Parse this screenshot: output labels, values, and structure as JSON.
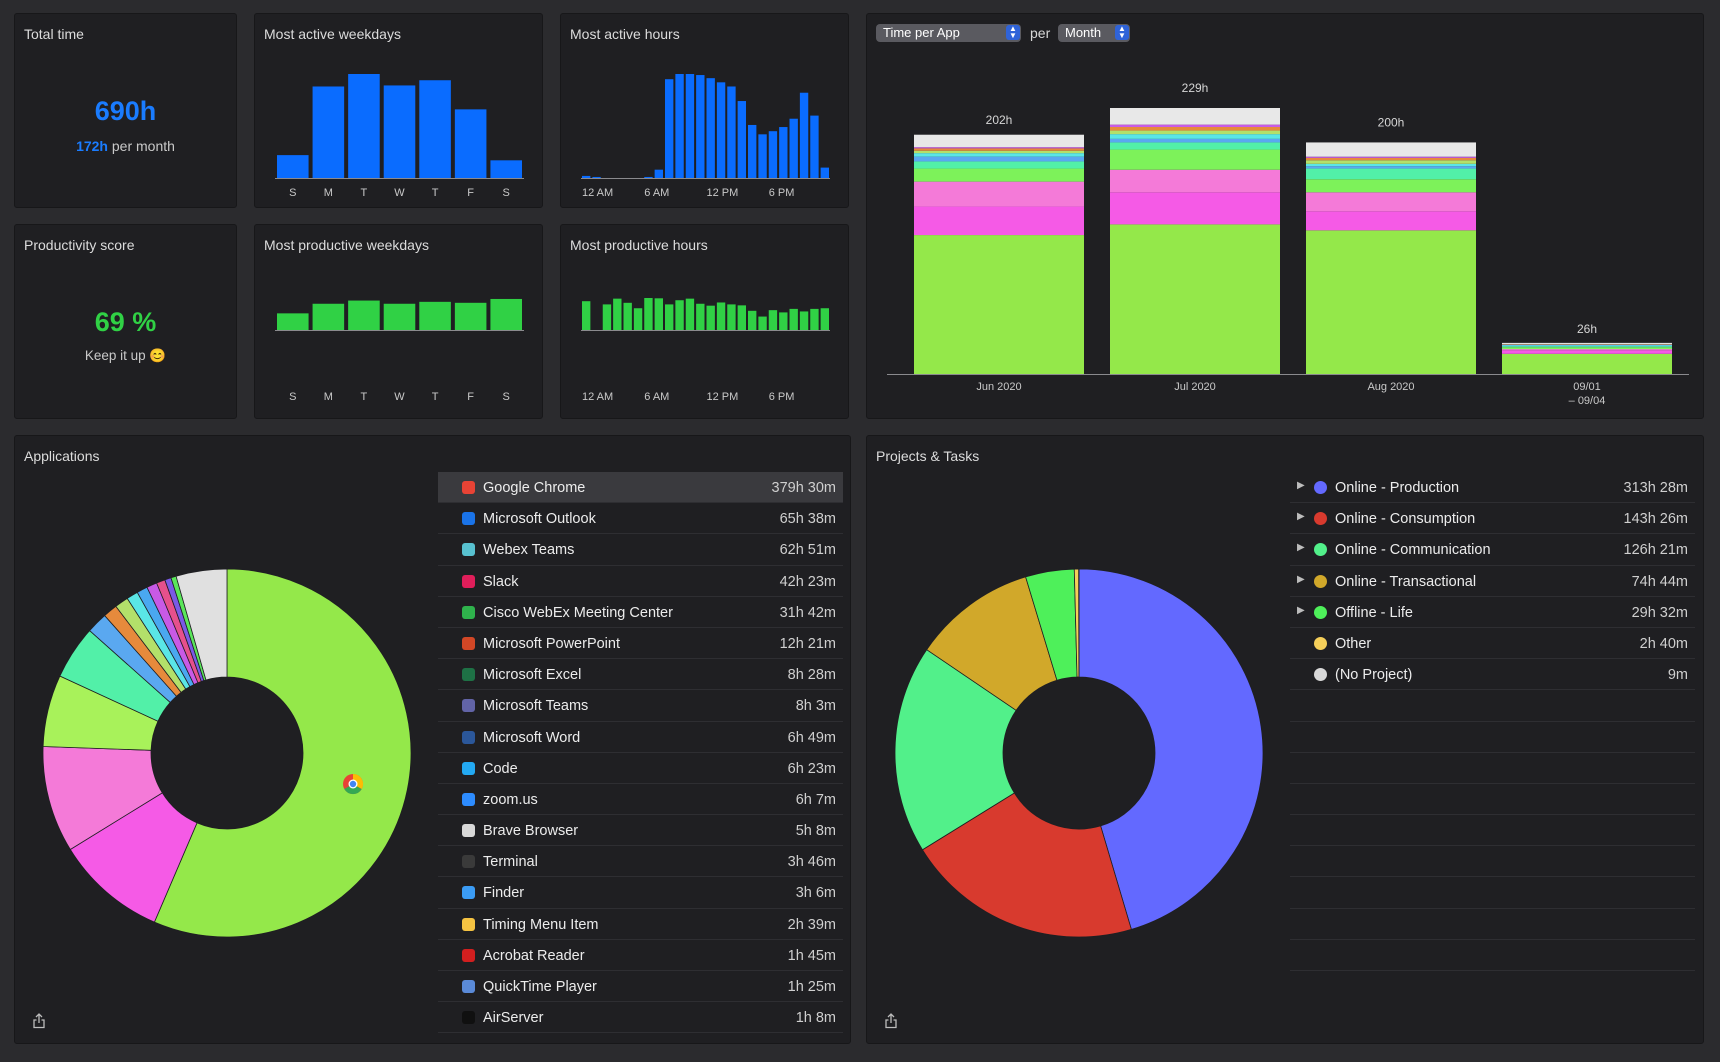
{
  "total_time": {
    "title": "Total time",
    "value": "690h",
    "per_month_value": "172h",
    "per_month_label": "per month"
  },
  "productivity": {
    "title": "Productivity score",
    "value": "69 %",
    "subtitle": "Keep it up 😊"
  },
  "weekday_labels": [
    "S",
    "M",
    "T",
    "W",
    "T",
    "F",
    "S"
  ],
  "hour_labels": [
    "12 AM",
    "6 AM",
    "12 PM",
    "6 PM"
  ],
  "most_active_weekdays": {
    "title": "Most active weekdays",
    "values": [
      0.22,
      0.88,
      1.0,
      0.89,
      0.94,
      0.66,
      0.17
    ],
    "color": "#0a6cff"
  },
  "most_active_hours": {
    "title": "Most active hours",
    "values": [
      0.02,
      0.01,
      0,
      0,
      0,
      0,
      0.01,
      0.08,
      0.95,
      1.0,
      1.0,
      0.99,
      0.96,
      0.92,
      0.88,
      0.74,
      0.51,
      0.42,
      0.45,
      0.49,
      0.57,
      0.82,
      0.6,
      0.1
    ],
    "color": "#0a6cff"
  },
  "most_productive_weekdays": {
    "title": "Most productive weekdays",
    "values": [
      0.52,
      0.82,
      0.92,
      0.82,
      0.88,
      0.85,
      0.97
    ],
    "color": "#30d145"
  },
  "most_productive_hours": {
    "title": "Most productive hours",
    "values": [
      0.9,
      0,
      0.8,
      0.98,
      0.85,
      0.68,
      1.0,
      0.99,
      0.8,
      0.93,
      0.98,
      0.82,
      0.76,
      0.86,
      0.8,
      0.77,
      0.6,
      0.42,
      0.62,
      0.55,
      0.66,
      0.58,
      0.66,
      0.68
    ],
    "color": "#30d145"
  },
  "time_chart": {
    "metric_select": "Time per App",
    "per_label": "per",
    "period_select": "Month"
  },
  "chart_data": {
    "type": "bar",
    "stacked": true,
    "categories": [
      "Jun 2020",
      "Jul 2020",
      "Aug 2020",
      "09/01\n– 09/04"
    ],
    "totals_labels": [
      "202h",
      "229h",
      "200h",
      "26h"
    ],
    "totals": [
      202,
      229,
      200,
      26
    ],
    "ylim": [
      0,
      240
    ],
    "segments": [
      {
        "color": "#94e84a",
        "values": [
          117,
          126,
          121,
          17
        ]
      },
      {
        "color": "#f55ae6",
        "values": [
          24,
          27,
          16,
          3
        ]
      },
      {
        "color": "#f47ad8",
        "values": [
          21,
          19,
          16,
          1
        ]
      },
      {
        "color": "#7df25a",
        "values": [
          11,
          17,
          11,
          1.5
        ]
      },
      {
        "color": "#52f0a8",
        "values": [
          6,
          6,
          9,
          1
        ]
      },
      {
        "color": "#5aa8f0",
        "values": [
          4,
          3,
          2,
          0.5
        ]
      },
      {
        "color": "#5ae6e6",
        "values": [
          3,
          4,
          2,
          0.5
        ]
      },
      {
        "color": "#b3e06a",
        "values": [
          2,
          3,
          3,
          0.3
        ]
      },
      {
        "color": "#e68a3c",
        "values": [
          2,
          3,
          2,
          0.3
        ]
      },
      {
        "color": "#c85ae6",
        "values": [
          1,
          2,
          1,
          0.2
        ]
      },
      {
        "color": "#e8e8e8",
        "values": [
          10.5,
          14,
          12,
          0.9
        ]
      }
    ]
  },
  "applications": {
    "title": "Applications",
    "items": [
      {
        "name": "Google Chrome",
        "duration": "379h 30m",
        "icon": "chrome-icon",
        "color": "#e84335",
        "minutes": 22770
      },
      {
        "name": "Microsoft Outlook",
        "duration": "65h 38m",
        "icon": "outlook-icon",
        "color": "#1a73e8",
        "minutes": 3938
      },
      {
        "name": "Webex Teams",
        "duration": "62h 51m",
        "icon": "webex-icon",
        "color": "#58c1d0",
        "minutes": 3771
      },
      {
        "name": "Slack",
        "duration": "42h 23m",
        "icon": "slack-icon",
        "color": "#e01e5a",
        "minutes": 2543
      },
      {
        "name": "Cisco WebEx Meeting Center",
        "duration": "31h 42m",
        "icon": "webex-meeting-icon",
        "color": "#2fb24c",
        "minutes": 1902
      },
      {
        "name": "Microsoft PowerPoint",
        "duration": "12h 21m",
        "icon": "powerpoint-icon",
        "color": "#d24726",
        "minutes": 741
      },
      {
        "name": "Microsoft Excel",
        "duration": "8h 28m",
        "icon": "excel-icon",
        "color": "#1e7145",
        "minutes": 508
      },
      {
        "name": "Microsoft Teams",
        "duration": "8h 3m",
        "icon": "teams-icon",
        "color": "#6264a7",
        "minutes": 483
      },
      {
        "name": "Microsoft Word",
        "duration": "6h 49m",
        "icon": "word-icon",
        "color": "#2b579a",
        "minutes": 409
      },
      {
        "name": "Code",
        "duration": "6h 23m",
        "icon": "vscode-icon",
        "color": "#23a9f2",
        "minutes": 383
      },
      {
        "name": "zoom.us",
        "duration": "6h 7m",
        "icon": "zoom-icon",
        "color": "#2d8cff",
        "minutes": 367
      },
      {
        "name": "Brave Browser",
        "duration": "5h 8m",
        "icon": "brave-icon",
        "color": "#d8d8d8",
        "minutes": 308
      },
      {
        "name": "Terminal",
        "duration": "3h 46m",
        "icon": "terminal-icon",
        "color": "#3a3a3a",
        "minutes": 226
      },
      {
        "name": "Finder",
        "duration": "3h 6m",
        "icon": "finder-icon",
        "color": "#3b9cf5",
        "minutes": 186
      },
      {
        "name": "Timing Menu Item",
        "duration": "2h 39m",
        "icon": "timing-icon",
        "color": "#f5c342",
        "minutes": 159
      },
      {
        "name": "Acrobat Reader",
        "duration": "1h 45m",
        "icon": "acrobat-icon",
        "color": "#d21f1f",
        "minutes": 105
      },
      {
        "name": "QuickTime Player",
        "duration": "1h 25m",
        "icon": "quicktime-icon",
        "color": "#5a8ad8",
        "minutes": 85
      },
      {
        "name": "AirServer",
        "duration": "1h 8m",
        "icon": "airserver-icon",
        "color": "#101010",
        "minutes": 68
      }
    ],
    "pie": [
      {
        "value": 22770,
        "color": "#94e84a"
      },
      {
        "value": 3938,
        "color": "#f55ae6"
      },
      {
        "value": 3771,
        "color": "#f47ad8"
      },
      {
        "value": 2543,
        "color": "#a8f25a"
      },
      {
        "value": 1902,
        "color": "#52f0a8"
      },
      {
        "value": 741,
        "color": "#5aa8f0"
      },
      {
        "value": 508,
        "color": "#e68a3c"
      },
      {
        "value": 483,
        "color": "#b3e06a"
      },
      {
        "value": 409,
        "color": "#5ae6e6"
      },
      {
        "value": 383,
        "color": "#4aa8f0"
      },
      {
        "value": 367,
        "color": "#c85ae6"
      },
      {
        "value": 308,
        "color": "#e6508c"
      },
      {
        "value": 226,
        "color": "#7a5ae6"
      },
      {
        "value": 186,
        "color": "#5ae65a"
      },
      {
        "value": 1800,
        "color": "#e0e0e0"
      }
    ]
  },
  "projects": {
    "title": "Projects & Tasks",
    "items": [
      {
        "name": "Online - Production",
        "duration": "313h 28m",
        "color": "#6369ff",
        "expandable": true
      },
      {
        "name": "Online - Consumption",
        "duration": "143h 26m",
        "color": "#d83a2e",
        "expandable": true
      },
      {
        "name": "Online - Communication",
        "duration": "126h 21m",
        "color": "#52f08a",
        "expandable": true
      },
      {
        "name": "Online - Transactional",
        "duration": "74h 44m",
        "color": "#d1a82a",
        "expandable": true
      },
      {
        "name": "Offline - Life",
        "duration": "29h 32m",
        "color": "#4ef05a",
        "expandable": true
      },
      {
        "name": "Other",
        "duration": "2h 40m",
        "color": "#f5cf5a",
        "expandable": false
      },
      {
        "name": "(No Project)",
        "duration": "9m",
        "color": "#d8d8d8",
        "expandable": false
      }
    ],
    "pie": [
      {
        "value": 18808,
        "color": "#6369ff"
      },
      {
        "value": 8606,
        "color": "#d83a2e"
      },
      {
        "value": 7581,
        "color": "#52f08a"
      },
      {
        "value": 4484,
        "color": "#d1a82a"
      },
      {
        "value": 1772,
        "color": "#4ef05a"
      },
      {
        "value": 160,
        "color": "#f5cf5a"
      },
      {
        "value": 9,
        "color": "#d8d8d8"
      }
    ]
  }
}
